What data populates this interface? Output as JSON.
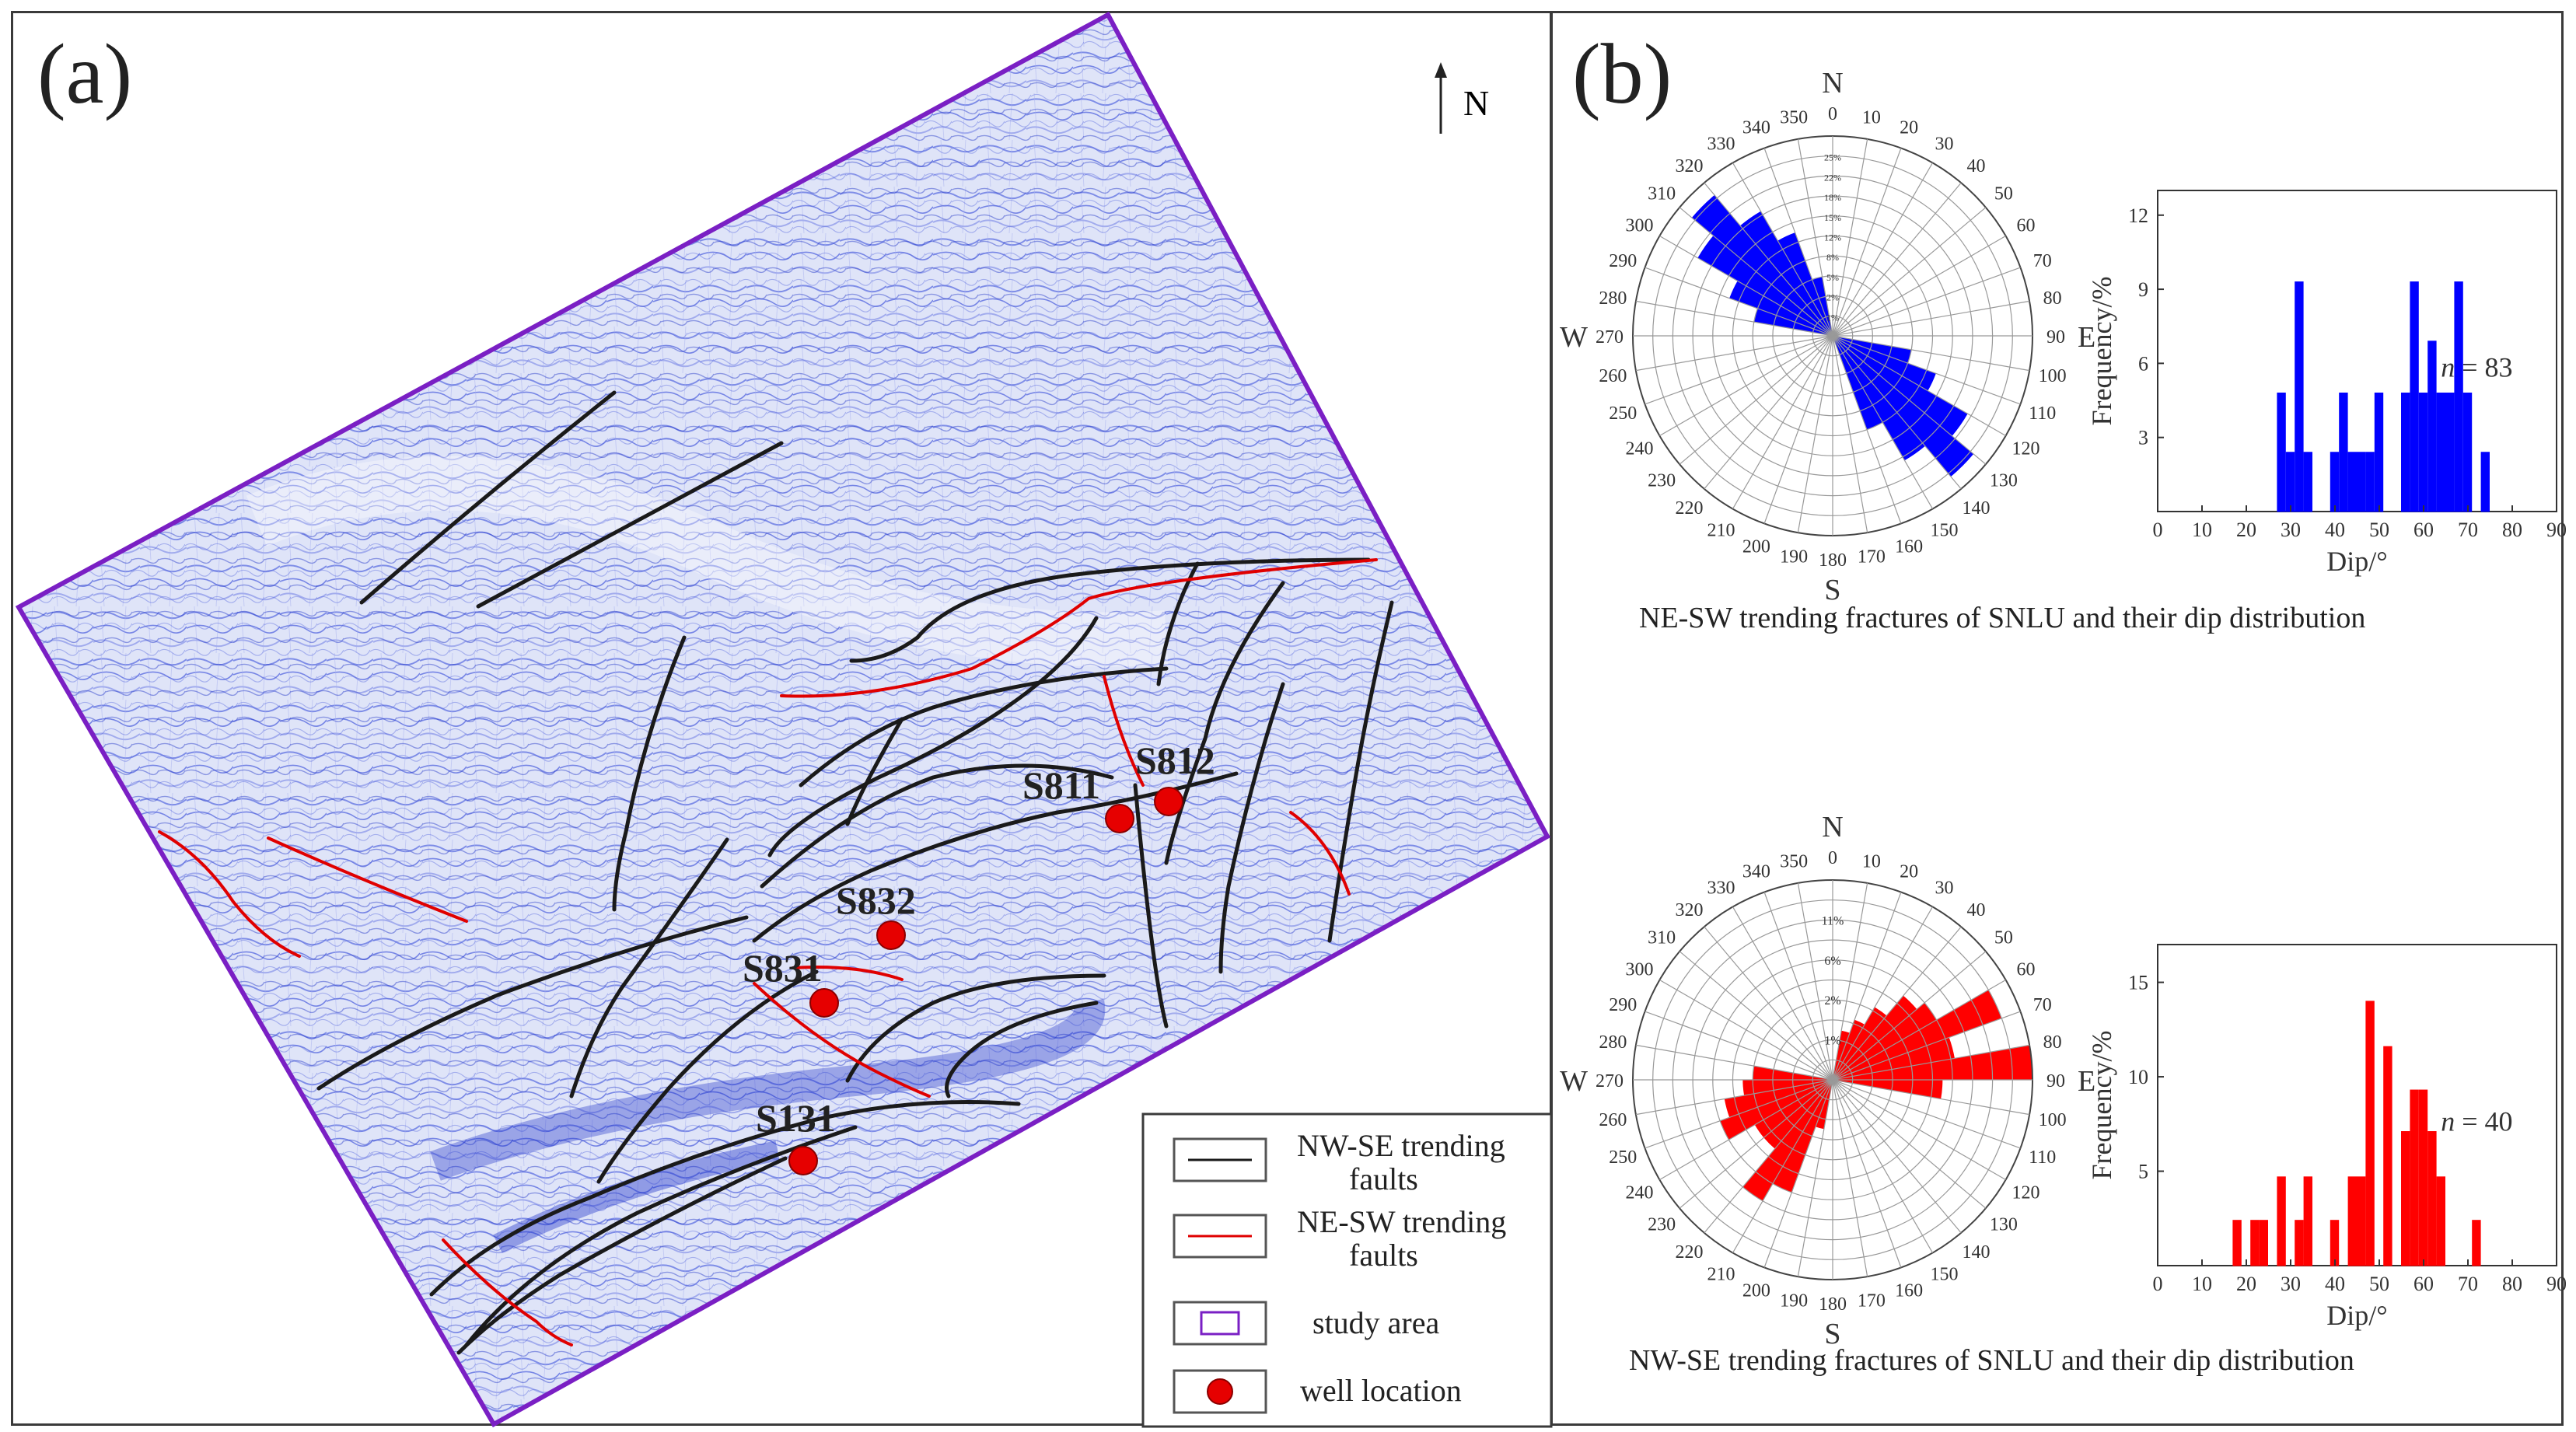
{
  "panel_a": {
    "label": "(a)",
    "north_label": "N",
    "wells": [
      {
        "name": "S811"
      },
      {
        "name": "S812"
      },
      {
        "name": "S832"
      },
      {
        "name": "S831"
      },
      {
        "name": "S131"
      }
    ],
    "legend": [
      {
        "line1": "NW-SE trending",
        "line2": "faults"
      },
      {
        "line1": "NE-SW trending",
        "line2": "faults"
      },
      {
        "line1": "study  area",
        "line2": ""
      },
      {
        "line1": "well location",
        "line2": ""
      }
    ],
    "colors": {
      "nw_se_fault": "#1a1a1a",
      "ne_sw_fault": "#e00000",
      "study_area": "#7a1fc4",
      "well": "#e60000",
      "seismic": "#2a3fd6"
    }
  },
  "panel_b": {
    "label": "(b)",
    "top": {
      "caption": "NE-SW trending fractures of SNLU and their dip distribution",
      "rose_color": "#0000ff",
      "rose_rings": [
        "25%",
        "22%",
        "18%",
        "15%",
        "12%",
        "8%",
        "5%",
        "2%",
        "1%"
      ],
      "hist_n": "= 83",
      "chart_data": {
        "type": "bar",
        "xlabel": "Dip/°",
        "ylabel": "Frequency/%",
        "xlim": [
          0,
          90
        ],
        "ylim": [
          0,
          13
        ],
        "xticks": [
          "0",
          "10",
          "20",
          "30",
          "40",
          "50",
          "60",
          "70",
          "80",
          "90"
        ],
        "yticks": [
          "3",
          "6",
          "9",
          "12"
        ],
        "bins": [
          28,
          30,
          32,
          34,
          40,
          42,
          44,
          46,
          48,
          50,
          56,
          58,
          60,
          62,
          64,
          66,
          68,
          70,
          74
        ],
        "values": [
          4.8,
          2.4,
          9.3,
          2.4,
          2.4,
          4.8,
          2.4,
          2.4,
          2.4,
          4.8,
          4.8,
          9.3,
          4.8,
          6.9,
          4.8,
          4.8,
          9.3,
          4.8,
          2.4
        ]
      }
    },
    "bottom": {
      "caption": "NW-SE trending fractures of SNLU and their dip distribution",
      "rose_color": "#ff0000",
      "rose_rings": [
        "11%",
        "6%",
        "2%",
        "1%"
      ],
      "hist_n": "= 40",
      "chart_data": {
        "type": "bar",
        "xlabel": "Dip/°",
        "ylabel": "Frequency/%",
        "xlim": [
          0,
          90
        ],
        "ylim": [
          0,
          17
        ],
        "xticks": [
          "0",
          "10",
          "20",
          "30",
          "40",
          "50",
          "60",
          "70",
          "80",
          "90"
        ],
        "yticks": [
          "5",
          "10",
          "15"
        ],
        "bins": [
          18,
          22,
          24,
          28,
          32,
          34,
          40,
          44,
          46,
          48,
          52,
          56,
          58,
          60,
          62,
          64,
          72
        ],
        "values": [
          2.4,
          2.4,
          2.4,
          4.7,
          2.4,
          4.7,
          2.4,
          4.7,
          4.7,
          14,
          11.6,
          7.1,
          9.3,
          9.3,
          7.1,
          4.7,
          2.4
        ]
      }
    },
    "rose_labels": {
      "north": "N",
      "south": "S",
      "east": "E",
      "west": "W",
      "angles": [
        "0",
        "10",
        "20",
        "30",
        "40",
        "50",
        "60",
        "70",
        "80",
        "90",
        "100",
        "110",
        "120",
        "130",
        "140",
        "150",
        "160",
        "170",
        "180",
        "190",
        "200",
        "210",
        "220",
        "230",
        "240",
        "250",
        "260",
        "270",
        "280",
        "290",
        "300",
        "310",
        "320",
        "330",
        "340",
        "350"
      ]
    }
  }
}
